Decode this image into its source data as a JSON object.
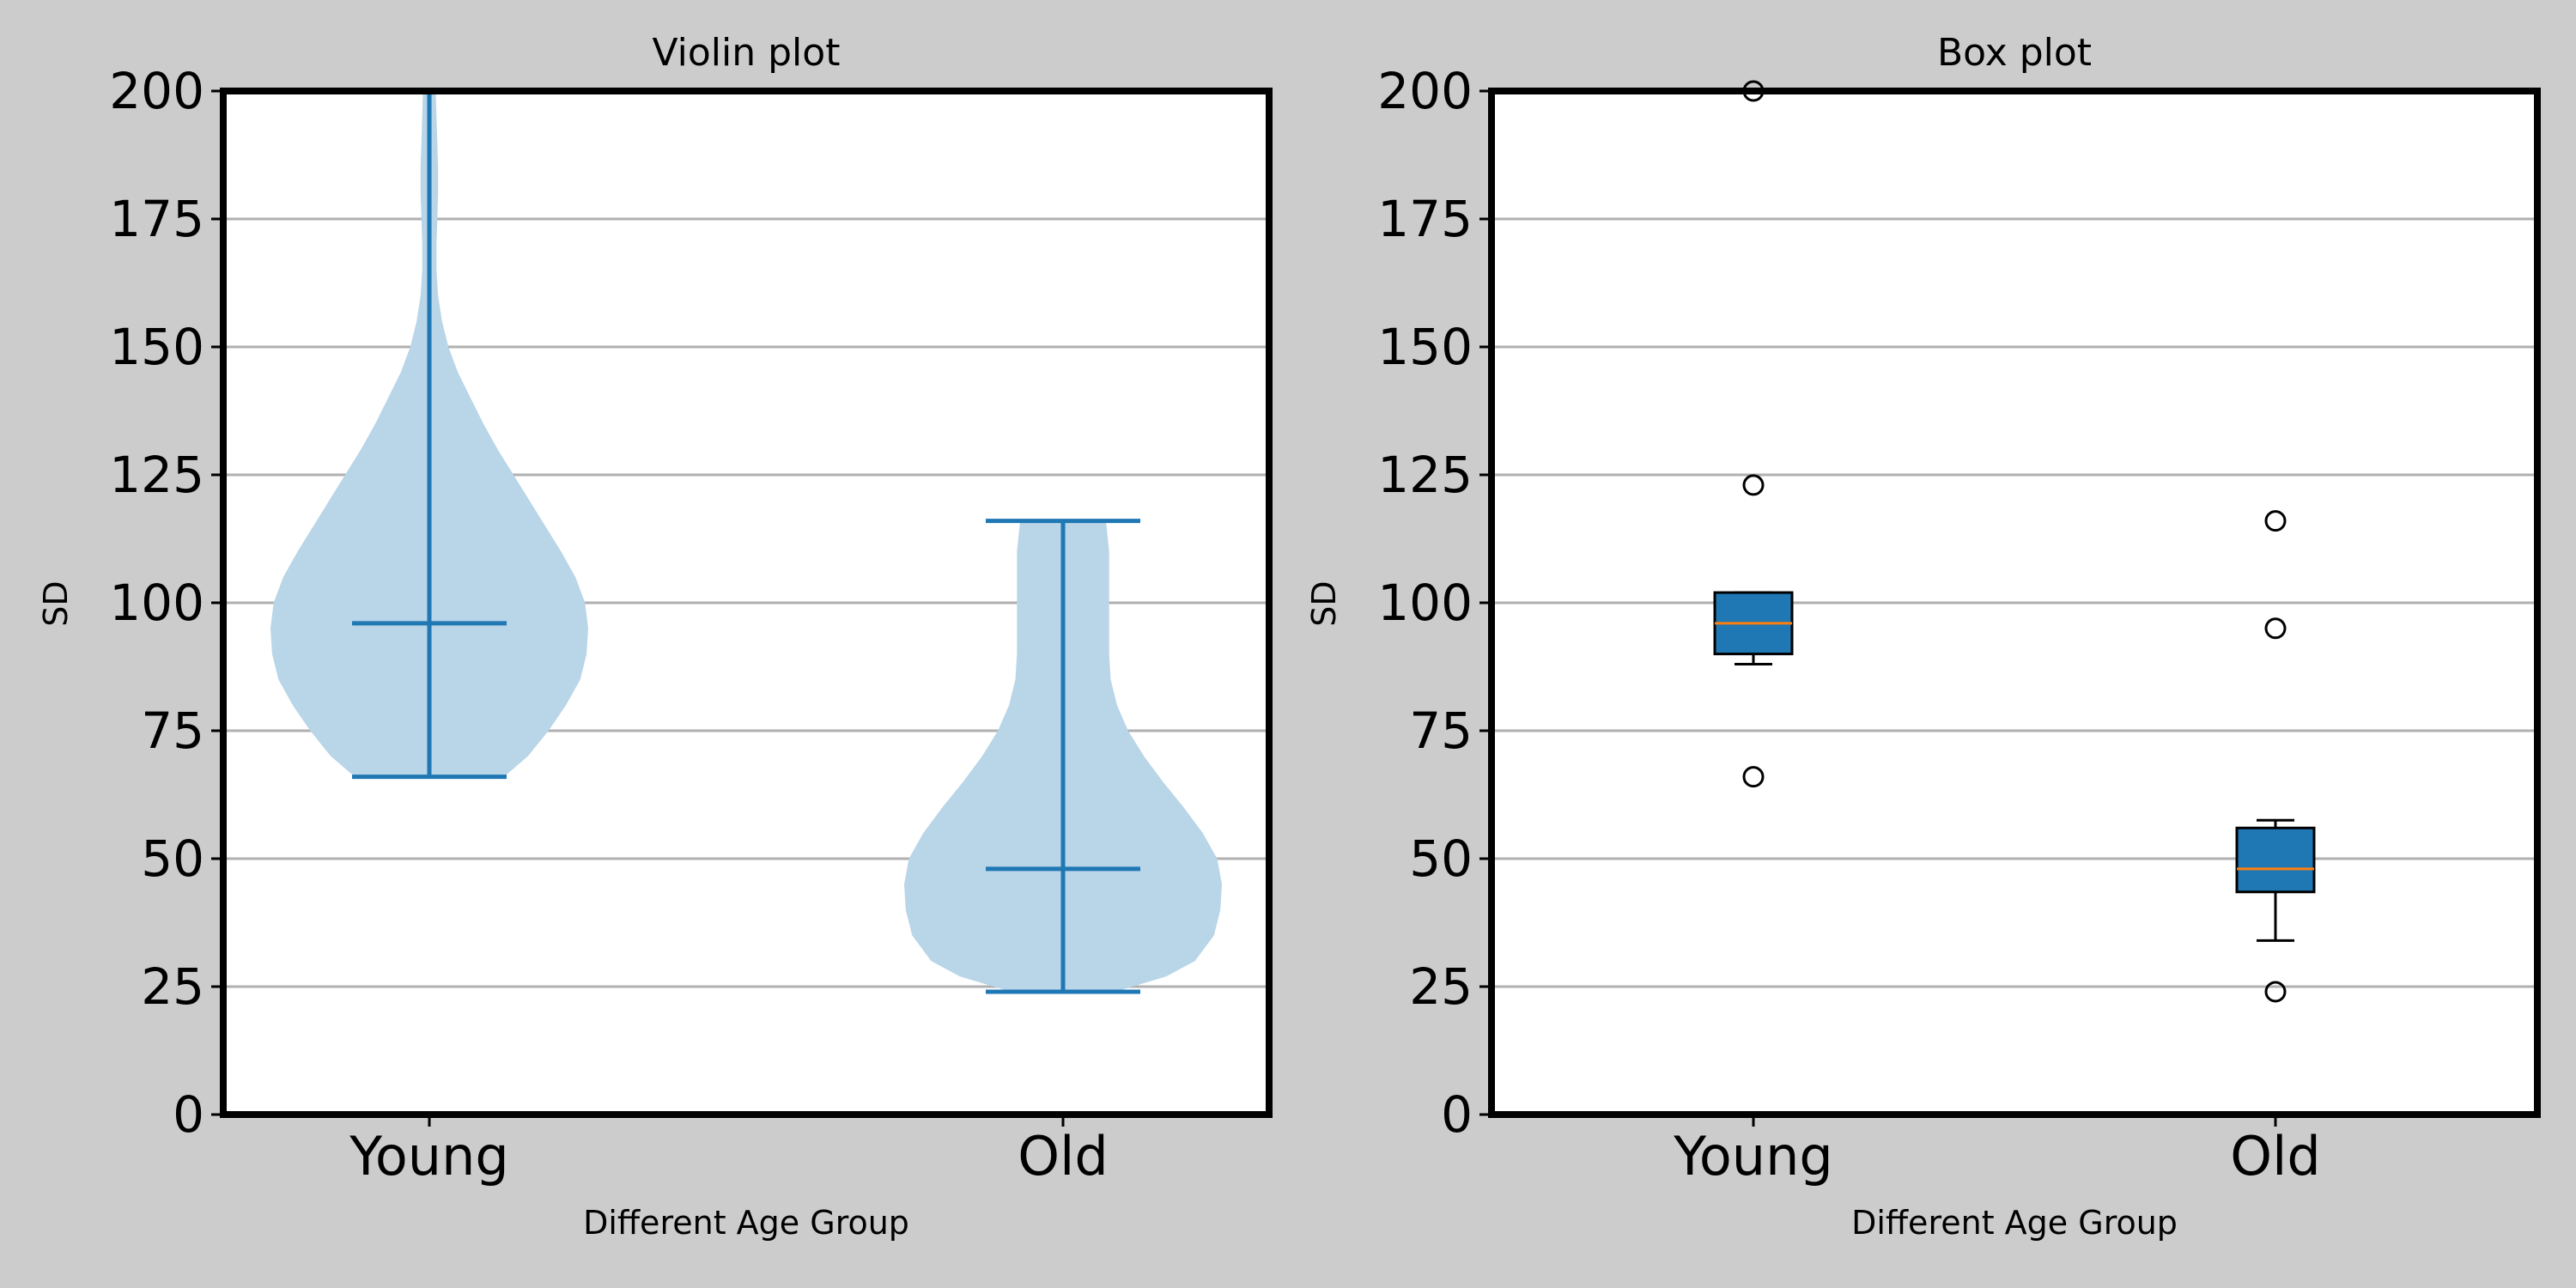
{
  "figure": {
    "background": "#cccccc"
  },
  "chart_data": [
    {
      "type": "violin",
      "title": "Violin plot",
      "xlabel": "Different Age Group",
      "ylabel": "SD",
      "categories": [
        "Young",
        "Old"
      ],
      "ylim": [
        0,
        200
      ],
      "yticks": [
        0,
        25,
        50,
        75,
        100,
        125,
        150,
        175,
        200
      ],
      "grid": "y",
      "violin_color": "#b9d5e8",
      "line_color": "#1f77b4",
      "series": [
        {
          "category": "Young",
          "min": 66,
          "median": 96,
          "max": 200,
          "density_profile": [
            {
              "y": 66,
              "w": 0.47
            },
            {
              "y": 70,
              "w": 0.62
            },
            {
              "y": 75,
              "w": 0.75
            },
            {
              "y": 80,
              "w": 0.86
            },
            {
              "y": 85,
              "w": 0.95
            },
            {
              "y": 90,
              "w": 0.99
            },
            {
              "y": 95,
              "w": 1.0
            },
            {
              "y": 100,
              "w": 0.98
            },
            {
              "y": 105,
              "w": 0.92
            },
            {
              "y": 110,
              "w": 0.83
            },
            {
              "y": 115,
              "w": 0.73
            },
            {
              "y": 120,
              "w": 0.63
            },
            {
              "y": 125,
              "w": 0.53
            },
            {
              "y": 130,
              "w": 0.43
            },
            {
              "y": 135,
              "w": 0.34
            },
            {
              "y": 140,
              "w": 0.26
            },
            {
              "y": 145,
              "w": 0.18
            },
            {
              "y": 150,
              "w": 0.12
            },
            {
              "y": 155,
              "w": 0.08
            },
            {
              "y": 160,
              "w": 0.055
            },
            {
              "y": 165,
              "w": 0.045
            },
            {
              "y": 170,
              "w": 0.045
            },
            {
              "y": 175,
              "w": 0.05
            },
            {
              "y": 180,
              "w": 0.055
            },
            {
              "y": 185,
              "w": 0.055
            },
            {
              "y": 190,
              "w": 0.05
            },
            {
              "y": 195,
              "w": 0.045
            },
            {
              "y": 200,
              "w": 0.04
            }
          ]
        },
        {
          "category": "Old",
          "min": 24,
          "median": 48,
          "max": 116,
          "density_profile": [
            {
              "y": 24,
              "w": 0.33
            },
            {
              "y": 27,
              "w": 0.65
            },
            {
              "y": 30,
              "w": 0.83
            },
            {
              "y": 35,
              "w": 0.95
            },
            {
              "y": 40,
              "w": 0.99
            },
            {
              "y": 45,
              "w": 1.0
            },
            {
              "y": 50,
              "w": 0.97
            },
            {
              "y": 55,
              "w": 0.88
            },
            {
              "y": 60,
              "w": 0.76
            },
            {
              "y": 65,
              "w": 0.63
            },
            {
              "y": 70,
              "w": 0.51
            },
            {
              "y": 75,
              "w": 0.41
            },
            {
              "y": 80,
              "w": 0.34
            },
            {
              "y": 85,
              "w": 0.3
            },
            {
              "y": 90,
              "w": 0.29
            },
            {
              "y": 95,
              "w": 0.29
            },
            {
              "y": 100,
              "w": 0.29
            },
            {
              "y": 105,
              "w": 0.29
            },
            {
              "y": 110,
              "w": 0.29
            },
            {
              "y": 116,
              "w": 0.27
            }
          ]
        }
      ]
    },
    {
      "type": "box",
      "title": "Box plot",
      "xlabel": "Different Age Group",
      "ylabel": "SD",
      "categories": [
        "Young",
        "Old"
      ],
      "ylim": [
        0,
        200
      ],
      "yticks": [
        0,
        25,
        50,
        75,
        100,
        125,
        150,
        175,
        200
      ],
      "grid": "y",
      "box_color": "#1f77b4",
      "median_color": "#ff7f0e",
      "series": [
        {
          "category": "Young",
          "whisker_low": 88,
          "q1": 90,
          "median": 96,
          "q3": 102,
          "whisker_high": 102,
          "outliers": [
            66,
            123,
            200
          ]
        },
        {
          "category": "Old",
          "whisker_low": 34,
          "q1": 43.5,
          "median": 48,
          "q3": 56,
          "whisker_high": 57.5,
          "outliers": [
            24,
            95,
            116
          ]
        }
      ]
    }
  ]
}
